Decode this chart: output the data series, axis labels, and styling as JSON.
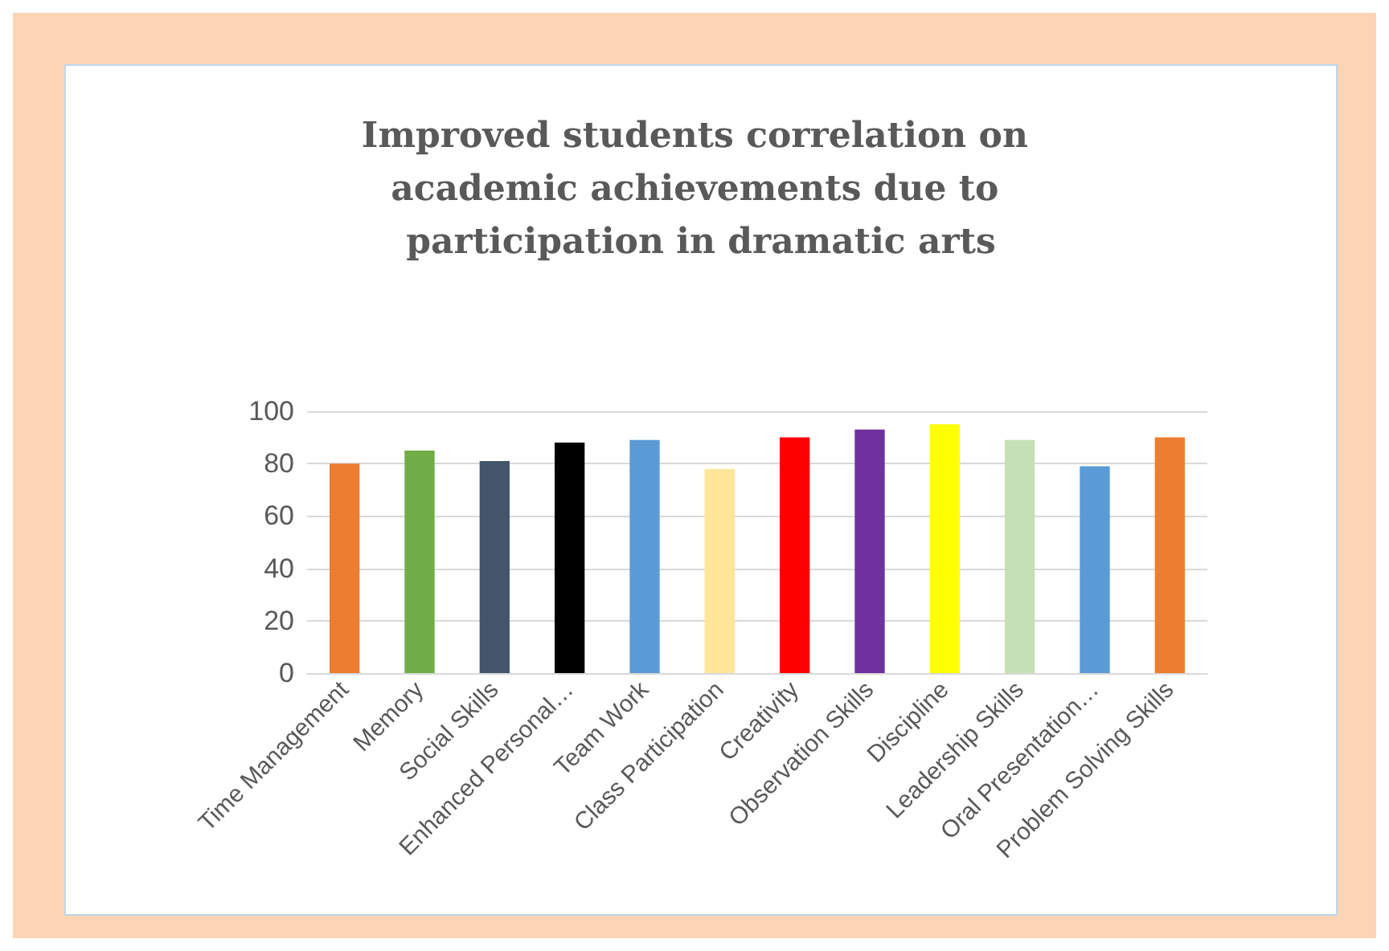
{
  "chart_data": {
    "type": "bar",
    "title": "Improved students correlation on academic achievements due to participation in dramatic arts",
    "categories": [
      "Time Management",
      "Memory",
      "Social Skills",
      "Enhanced Personal…",
      "Team Work",
      "Class Participation",
      "Creativity",
      "Observation Skills",
      "Discipline",
      "Leadership Skills",
      "Oral Presentation…",
      "Problem Solving Skills"
    ],
    "values": [
      80,
      85,
      81,
      88,
      89,
      78,
      90,
      93,
      95,
      89,
      79,
      90
    ],
    "colors": [
      "#ed7d31",
      "#70ad47",
      "#44546a",
      "#000000",
      "#5b9bd5",
      "#ffe699",
      "#ff0000",
      "#7030a0",
      "#ffff00",
      "#c5e0b4",
      "#5b9bd5",
      "#ed7d31"
    ],
    "ylim": [
      0,
      100
    ],
    "yticks": [
      0,
      20,
      40,
      60,
      80,
      100
    ],
    "grid": "y"
  }
}
